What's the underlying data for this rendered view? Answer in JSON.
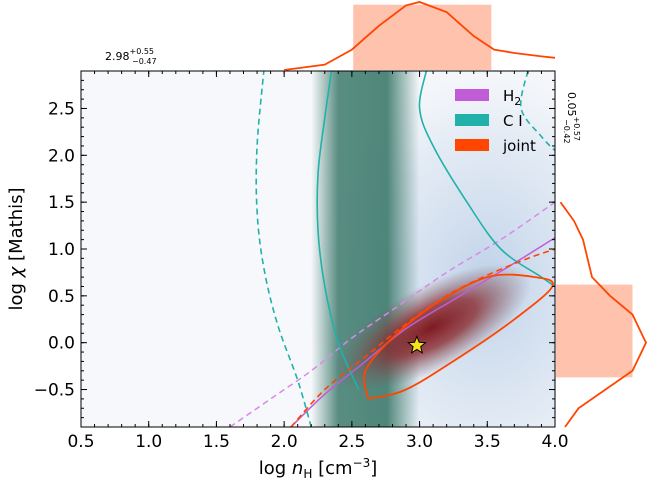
{
  "chart_data": {
    "type": "contour",
    "xlabel": "log n_H [cm^-3]",
    "ylabel": "log χ [Mathis]",
    "xlim": [
      0.5,
      4.0
    ],
    "ylim": [
      -0.9,
      2.9
    ],
    "xticks": [
      0.5,
      1.0,
      1.5,
      2.0,
      2.5,
      3.0,
      3.5,
      4.0
    ],
    "yticks": [
      -0.5,
      0.0,
      0.5,
      1.0,
      1.5,
      2.0,
      2.5
    ],
    "xtick_labels": [
      "0.5",
      "1.0",
      "1.5",
      "2.0",
      "2.5",
      "3.0",
      "3.5",
      "4.0"
    ],
    "ytick_labels": [
      "−0.5",
      "0.0",
      "0.5",
      "1.0",
      "1.5",
      "2.0",
      "2.5"
    ],
    "xlabel_parts": {
      "prefix": "log",
      "var": "n",
      "sub": "H",
      "units": " [cm",
      "exp": "−3",
      "close": "]"
    },
    "ylabel_parts": {
      "prefix": "log",
      "var": "χ",
      "rest": " [Mathis]"
    },
    "best_fit": {
      "x": 2.98,
      "y": -0.03,
      "marker": "star"
    },
    "legend": [
      {
        "label_main": "H",
        "label_sub": "2",
        "color": "#c15bd8"
      },
      {
        "label_main": "C I",
        "label_sub": "",
        "color": "#20b2aa"
      },
      {
        "label_main": "joint",
        "label_sub": "",
        "color": "#ff4500"
      }
    ],
    "marginal_x": {
      "median": 2.98,
      "plus": "+0.55",
      "minus": "−0.47",
      "median_text": "2.98",
      "interval": [
        2.51,
        3.53
      ],
      "density": [
        [
          2.0,
          0.0
        ],
        [
          2.3,
          0.08
        ],
        [
          2.5,
          0.3
        ],
        [
          2.7,
          0.65
        ],
        [
          2.9,
          0.95
        ],
        [
          3.0,
          1.0
        ],
        [
          3.2,
          0.85
        ],
        [
          3.4,
          0.5
        ],
        [
          3.55,
          0.3
        ],
        [
          3.7,
          0.25
        ],
        [
          3.9,
          0.2
        ],
        [
          4.0,
          0.18
        ]
      ],
      "color": "#ff4500"
    },
    "marginal_y": {
      "median": 0.05,
      "plus": "+0.57",
      "minus": "−0.42",
      "median_text": "0.05",
      "interval": [
        -0.37,
        0.62
      ],
      "density": [
        [
          -0.9,
          0.1
        ],
        [
          -0.7,
          0.25
        ],
        [
          -0.5,
          0.55
        ],
        [
          -0.3,
          0.85
        ],
        [
          0.0,
          1.0
        ],
        [
          0.3,
          0.85
        ],
        [
          0.5,
          0.6
        ],
        [
          0.7,
          0.4
        ],
        [
          0.9,
          0.35
        ],
        [
          1.1,
          0.3
        ],
        [
          1.3,
          0.2
        ],
        [
          1.5,
          0.05
        ]
      ],
      "color": "#ff4500"
    },
    "contours": {
      "h2_dashed": [
        [
          1.6,
          -0.9
        ],
        [
          1.9,
          -0.6
        ],
        [
          2.2,
          -0.3
        ],
        [
          2.5,
          0.05
        ],
        [
          2.8,
          0.35
        ],
        [
          3.2,
          0.75
        ],
        [
          3.6,
          1.1
        ],
        [
          4.0,
          1.5
        ]
      ],
      "h2_solid": [
        [
          2.05,
          -0.9
        ],
        [
          2.3,
          -0.55
        ],
        [
          2.6,
          -0.2
        ],
        [
          2.9,
          0.15
        ],
        [
          3.3,
          0.5
        ],
        [
          3.7,
          0.85
        ],
        [
          4.0,
          1.12
        ]
      ],
      "ci_solid_left": [
        [
          2.55,
          -0.5
        ],
        [
          2.4,
          0.0
        ],
        [
          2.3,
          0.6
        ],
        [
          2.25,
          1.2
        ],
        [
          2.25,
          1.8
        ],
        [
          2.3,
          2.4
        ],
        [
          2.35,
          2.9
        ]
      ],
      "ci_solid_right": [
        [
          3.05,
          2.9
        ],
        [
          3.0,
          2.5
        ],
        [
          3.1,
          2.1
        ],
        [
          3.35,
          1.5
        ],
        [
          3.6,
          1.0
        ],
        [
          3.9,
          0.7
        ],
        [
          4.0,
          0.6
        ]
      ],
      "ci_dashed_left": [
        [
          2.2,
          -0.9
        ],
        [
          2.1,
          -0.4
        ],
        [
          1.95,
          0.2
        ],
        [
          1.85,
          0.8
        ],
        [
          1.8,
          1.4
        ],
        [
          1.8,
          2.1
        ],
        [
          1.85,
          2.9
        ]
      ],
      "ci_dashed_right": [
        [
          3.8,
          2.9
        ],
        [
          3.75,
          2.5
        ],
        [
          3.9,
          2.2
        ],
        [
          4.0,
          2.05
        ]
      ],
      "joint_solid": [
        [
          2.62,
          -0.6
        ],
        [
          2.9,
          -0.5
        ],
        [
          3.3,
          -0.15
        ],
        [
          3.7,
          0.25
        ],
        [
          3.98,
          0.6
        ],
        [
          3.85,
          0.7
        ],
        [
          3.5,
          0.7
        ],
        [
          3.1,
          0.4
        ],
        [
          2.8,
          0.05
        ],
        [
          2.6,
          -0.3
        ],
        [
          2.62,
          -0.6
        ]
      ],
      "joint_dashed": [
        [
          2.05,
          -0.9
        ],
        [
          2.3,
          -0.5
        ],
        [
          2.6,
          -0.15
        ],
        [
          2.9,
          0.2
        ],
        [
          3.2,
          0.5
        ],
        [
          3.5,
          0.72
        ],
        [
          3.8,
          0.9
        ],
        [
          4.0,
          1.0
        ]
      ]
    }
  }
}
